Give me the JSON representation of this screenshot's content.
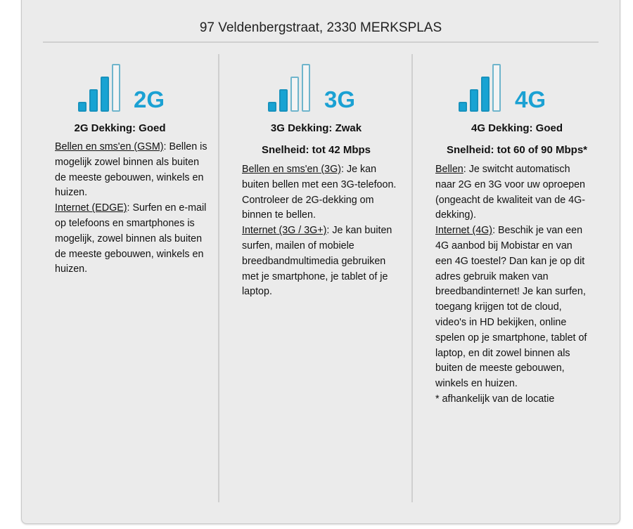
{
  "address": "97 Veldenbergstraat, 2330 MERKSPLAS",
  "colors": {
    "accent": "#1ba1d3",
    "panel": "#ebebeb"
  },
  "columns": [
    {
      "icon": "signal-bars-icon",
      "generation": "2G",
      "bars_filled": 3,
      "bars_total": 4,
      "title": "2G Dekking: Goed",
      "sections": [
        {
          "label": "Bellen en sms'en (GSM)",
          "text": ": Bellen is mogelijk zowel binnen als buiten de meeste gebouwen, winkels en huizen."
        },
        {
          "label": "Internet (EDGE)",
          "text": ": Surfen en e-mail op telefoons en smartphones is mogelijk, zowel binnen als buiten de meeste gebouwen, winkels en huizen."
        }
      ]
    },
    {
      "icon": "signal-bars-icon",
      "generation": "3G",
      "bars_filled": 2,
      "bars_total": 4,
      "title": "3G Dekking: Zwak",
      "speed": "Snelheid: tot 42 Mbps",
      "sections": [
        {
          "label": "Bellen en sms'en (3G)",
          "text": ": Je kan buiten bellen met een 3G-telefoon. Controleer de 2G-dekking om binnen te bellen."
        },
        {
          "label": "Internet (3G / 3G+)",
          "text": ": Je kan buiten surfen, mailen of mobiele breedbandmultimedia gebruiken met je smartphone, je tablet of je laptop."
        }
      ]
    },
    {
      "icon": "signal-bars-icon",
      "generation": "4G",
      "bars_filled": 3,
      "bars_total": 4,
      "title": "4G Dekking: Goed",
      "speed": "Snelheid: tot 60 of 90 Mbps*",
      "sections": [
        {
          "label": "Bellen",
          "text": ": Je switcht automatisch naar 2G en 3G voor uw oproepen (ongeacht de kwaliteit van de 4G-dekking)."
        },
        {
          "label": "Internet (4G)",
          "text": ": Beschik je van een 4G aanbod bij Mobistar en van een 4G toestel? Dan kan je op dit adres gebruik maken van breedbandinternet! Je kan surfen, toegang krijgen tot de cloud, video's in HD bekijken, online spelen op je smartphone, tablet of laptop, en dit zowel binnen als buiten de meeste gebouwen, winkels en huizen."
        }
      ],
      "footnote": "* afhankelijk van de locatie"
    }
  ]
}
